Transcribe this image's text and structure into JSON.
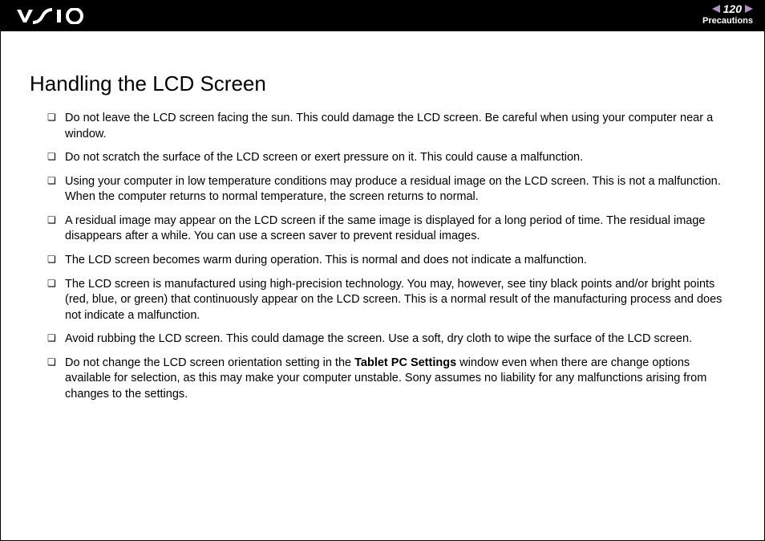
{
  "header": {
    "page_number": "120",
    "section": "Precautions"
  },
  "title": "Handling the LCD Screen",
  "items": [
    {
      "text": "Do not leave the LCD screen facing the sun. This could damage the LCD screen. Be careful when using your computer near a window."
    },
    {
      "text": "Do not scratch the surface of the LCD screen or exert pressure on it. This could cause a malfunction."
    },
    {
      "text": "Using your computer in low temperature conditions may produce a residual image on the LCD screen. This is not a malfunction. When the computer returns to normal temperature, the screen returns to normal."
    },
    {
      "text": "A residual image may appear on the LCD screen if the same image is displayed for a long period of time. The residual image disappears after a while. You can use a screen saver to prevent residual images."
    },
    {
      "text": "The LCD screen becomes warm during operation. This is normal and does not indicate a malfunction."
    },
    {
      "text": "The LCD screen is manufactured using high-precision technology. You may, however, see tiny black points and/or bright points (red, blue, or green) that continuously appear on the LCD screen. This is a normal result of the manufacturing process and does not indicate a malfunction."
    },
    {
      "text": "Avoid rubbing the LCD screen. This could damage the screen. Use a soft, dry cloth to wipe the surface of the LCD screen."
    },
    {
      "pre": "Do not change the LCD screen orientation setting in the ",
      "bold": "Tablet PC Settings",
      "post": " window even when there are change options available for selection, as this may make your computer unstable. Sony assumes no liability for any malfunctions arising from changes to the settings."
    }
  ],
  "colors": {
    "header_bg": "#000000",
    "arrow": "#b28fc0",
    "text": "#000000",
    "header_text": "#ffffff"
  },
  "fonts": {
    "title_size": 26,
    "body_size": 14.5,
    "page_num_size": 14,
    "section_size": 11
  }
}
